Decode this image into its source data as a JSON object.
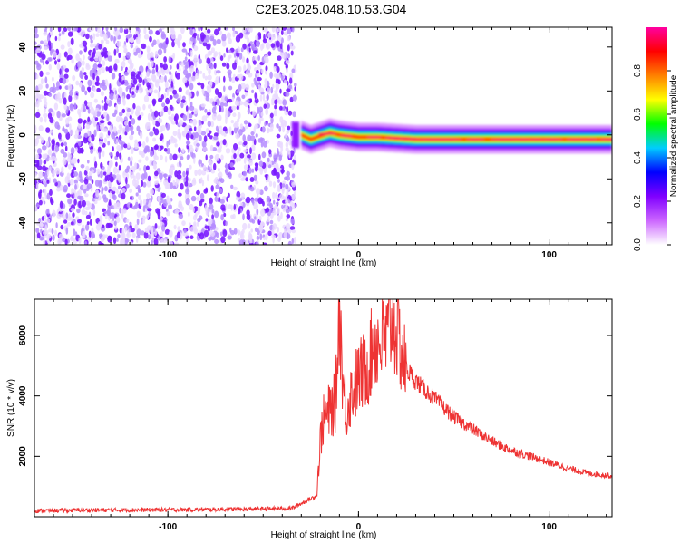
{
  "title": "C2E3.2025.048.10.53.G04",
  "chart_data": [
    {
      "type": "heatmap",
      "xlabel": "Height of straight line (km)",
      "ylabel": "Frequency (Hz)",
      "xlim": [
        -170,
        133
      ],
      "ylim": [
        -50,
        49
      ],
      "xticks": [
        -100,
        0,
        100
      ],
      "yticks": [
        -40,
        -20,
        0,
        20,
        40
      ],
      "grid": false,
      "regions": [
        {
          "name": "noise",
          "x_range": [
            -170,
            -33
          ],
          "freq_range": [
            -50,
            49
          ],
          "normalized_amplitude": [
            0.0,
            0.15
          ]
        },
        {
          "name": "burst",
          "x": -33,
          "freq_range": [
            -6,
            6
          ],
          "normalized_amplitude": 0.2
        },
        {
          "name": "line",
          "x_range": [
            -30,
            133
          ],
          "center_freq": [
            [
              -30,
              0
            ],
            [
              -25,
              -2
            ],
            [
              -15,
              1
            ],
            [
              -10,
              0
            ],
            [
              0,
              -1
            ],
            [
              10,
              -1
            ],
            [
              30,
              -2
            ],
            [
              133,
              -2
            ]
          ],
          "half_width_hz": 2.5,
          "peak_normalized_amplitude": 0.95
        }
      ],
      "colorbar": {
        "label": "Normalized spectral amplitude",
        "range": [
          0,
          1
        ],
        "ticks": [
          0.0,
          0.2,
          0.4,
          0.6,
          0.8
        ],
        "tick_labels": [
          "0.0",
          "0.2",
          "0.4",
          "0.6",
          "0.8"
        ],
        "colors": [
          "#ffffff",
          "#cc66ff",
          "#8000ff",
          "#0000ff",
          "#00ccff",
          "#00ff00",
          "#ffff00",
          "#ff8000",
          "#ff0000",
          "#ff00a0"
        ]
      }
    },
    {
      "type": "line",
      "xlabel": "Height of straight line (km)",
      "ylabel": "SNR (10 * v/v)",
      "xlim": [
        -170,
        133
      ],
      "ylim": [
        0,
        7200
      ],
      "xticks": [
        -100,
        0,
        100
      ],
      "yticks": [
        2000,
        4000,
        6000
      ],
      "series_color": "#ee3333",
      "grid": false,
      "x": [
        -170,
        -140,
        -100,
        -60,
        -35,
        -22,
        -20,
        -19,
        -17,
        -12,
        -10,
        -8,
        -6,
        -5,
        0,
        5,
        8,
        15,
        18,
        20,
        25,
        30,
        35,
        40,
        50,
        60,
        70,
        80,
        90,
        100,
        110,
        120,
        133
      ],
      "y": [
        200,
        220,
        230,
        250,
        280,
        700,
        2500,
        3100,
        3300,
        3800,
        7000,
        4200,
        3500,
        3900,
        4600,
        5000,
        5700,
        5900,
        6600,
        6100,
        4900,
        4500,
        4200,
        3900,
        3300,
        2900,
        2500,
        2200,
        2000,
        1800,
        1600,
        1450,
        1350
      ]
    }
  ]
}
